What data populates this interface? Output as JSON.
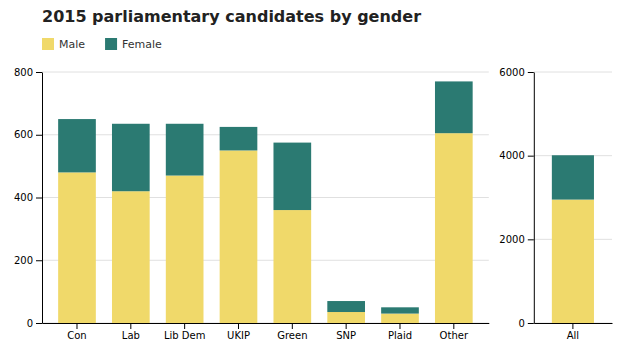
{
  "chart_data": [
    {
      "type": "bar",
      "title": "2015 parliamentary candidates by gender",
      "categories": [
        "Con",
        "Lab",
        "Lib Dem",
        "UKIP",
        "Green",
        "SNP",
        "Plaid",
        "Other"
      ],
      "series": [
        {
          "name": "Male",
          "color": "#F0D96A",
          "values": [
            480,
            420,
            470,
            550,
            360,
            35,
            30,
            605
          ]
        },
        {
          "name": "Female",
          "color": "#2B7A72",
          "values": [
            170,
            215,
            165,
            75,
            215,
            35,
            20,
            165
          ]
        }
      ],
      "ylim": [
        0,
        800
      ],
      "yticks": [
        0,
        200,
        400,
        600,
        800
      ],
      "stacked": true,
      "grid": true,
      "legend": "upper left"
    },
    {
      "type": "bar",
      "categories": [
        "All"
      ],
      "series": [
        {
          "color": "#F0D96A",
          "values": [
            2950
          ]
        },
        {
          "color": "#2B7A72",
          "values": [
            1060
          ]
        }
      ],
      "ylim": [
        0,
        6000
      ],
      "yticks": [
        0,
        2000,
        4000,
        6000
      ],
      "stacked": true,
      "grid": true
    }
  ]
}
